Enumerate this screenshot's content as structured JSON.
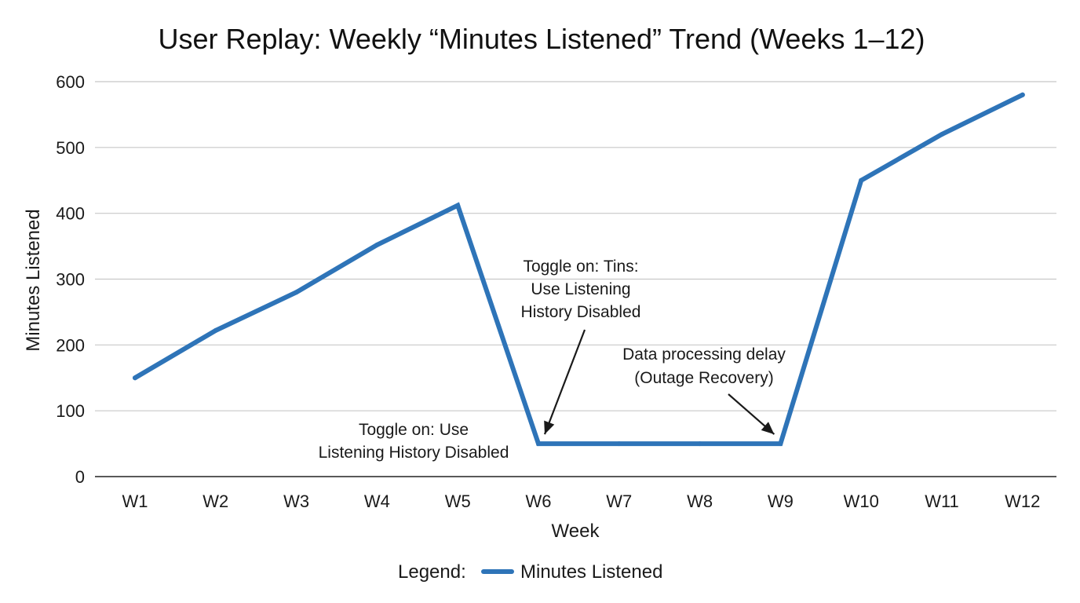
{
  "chart_data": {
    "type": "line",
    "title": "User Replay: Weekly “Minutes Listened” Trend (Weeks 1–12)",
    "xlabel": "Week",
    "ylabel": "Minutes Listened",
    "categories": [
      "W1",
      "W2",
      "W3",
      "W4",
      "W5",
      "W6",
      "W7",
      "W8",
      "W9",
      "W10",
      "W11",
      "W12"
    ],
    "ylim": [
      0,
      600
    ],
    "yticks": [
      0,
      100,
      200,
      300,
      400,
      500,
      600
    ],
    "grid": true,
    "series": [
      {
        "name": "Minutes Listened",
        "color": "#2e74b8",
        "values": [
          150,
          222,
          280,
          352,
          412,
          50,
          50,
          50,
          50,
          450,
          520,
          580
        ]
      }
    ],
    "annotations": [
      {
        "id": "toggle-top",
        "lines": [
          "Toggle on: Tins:",
          "Use Listening",
          "History Disabled"
        ],
        "arrow_to_category": "W6",
        "arrow_to_value": 50
      },
      {
        "id": "outage",
        "lines": [
          "Data processing delay",
          "(Outage Recovery)"
        ],
        "arrow_to_category": "W9",
        "arrow_to_value": 50
      },
      {
        "id": "toggle-bottom",
        "lines": [
          "Toggle on: Use",
          "Listening History Disabled"
        ]
      }
    ],
    "legend": {
      "prefix": "Legend:",
      "placement": "bottom-center"
    }
  }
}
